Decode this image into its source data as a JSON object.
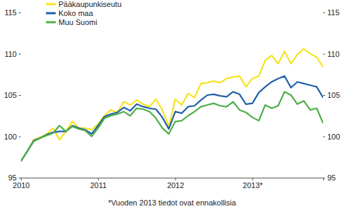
{
  "chart_data": {
    "type": "line",
    "categories": [
      "2010",
      null,
      null,
      null,
      null,
      null,
      null,
      null,
      null,
      null,
      null,
      null,
      "2011",
      null,
      null,
      null,
      null,
      null,
      null,
      null,
      null,
      null,
      null,
      null,
      "2012",
      null,
      null,
      null,
      null,
      null,
      null,
      null,
      null,
      null,
      null,
      null,
      "2013*",
      null,
      null,
      null,
      null,
      null,
      null,
      null,
      null,
      null,
      null,
      null
    ],
    "series": [
      {
        "name": "Pääkaupunkiseutu",
        "color": "#f7e21e",
        "values": [
          97.0,
          98.2,
          99.6,
          99.9,
          100.3,
          101.0,
          99.6,
          100.6,
          101.8,
          101.0,
          101.0,
          100.8,
          101.5,
          102.5,
          103.2,
          102.9,
          104.2,
          103.8,
          104.4,
          103.9,
          103.6,
          104.5,
          103.2,
          101.2,
          104.5,
          103.8,
          105.2,
          104.7,
          106.4,
          106.5,
          106.7,
          106.5,
          107.0,
          107.2,
          107.3,
          106.0,
          107.0,
          107.3,
          109.2,
          109.8,
          108.8,
          110.3,
          108.8,
          109.9,
          110.6,
          110.0,
          109.6,
          108.4
        ]
      },
      {
        "name": "Koko maa",
        "color": "#1f5fa8",
        "values": [
          97.0,
          98.2,
          99.5,
          99.8,
          100.2,
          100.5,
          100.6,
          100.6,
          101.3,
          101.0,
          100.8,
          100.3,
          101.3,
          102.4,
          102.7,
          102.9,
          103.5,
          103.1,
          103.9,
          103.6,
          103.4,
          103.3,
          102.3,
          100.9,
          103.0,
          102.8,
          103.6,
          103.7,
          104.4,
          105.0,
          105.1,
          104.9,
          104.8,
          105.4,
          105.1,
          103.9,
          104.0,
          105.3,
          106.0,
          106.6,
          107.0,
          107.3,
          105.9,
          106.6,
          106.4,
          106.2,
          106.0,
          104.7
        ]
      },
      {
        "name": "Muu Suomi",
        "color": "#4dae48",
        "values": [
          97.0,
          98.2,
          99.4,
          99.8,
          100.1,
          100.4,
          101.3,
          100.6,
          101.2,
          100.9,
          100.7,
          100.0,
          101.0,
          102.2,
          102.5,
          102.7,
          103.0,
          102.5,
          103.4,
          103.3,
          103.0,
          102.2,
          101.0,
          100.3,
          101.8,
          101.9,
          102.5,
          103.0,
          103.6,
          103.8,
          104.0,
          103.7,
          103.6,
          104.2,
          103.2,
          102.9,
          102.3,
          101.9,
          103.8,
          103.4,
          103.7,
          105.4,
          105.0,
          103.9,
          104.3,
          103.2,
          103.4,
          101.6
        ]
      }
    ],
    "ylim": [
      95,
      115
    ],
    "yticks": [
      95,
      100,
      105,
      110,
      115
    ],
    "grid": false,
    "legend": "top-left",
    "annotations": [
      "*Vuoden 2013 tiedot ovat ennakollisia"
    ]
  }
}
